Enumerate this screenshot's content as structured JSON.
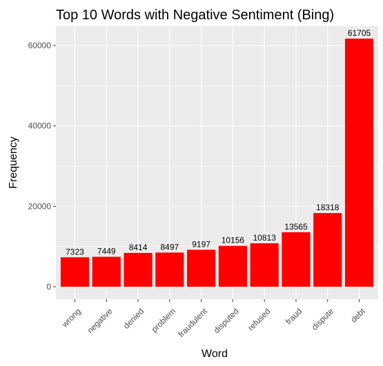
{
  "chart_data": {
    "type": "bar",
    "title": "Top 10 Words with Negative Sentiment (Bing)",
    "xlabel": "Word",
    "ylabel": "Frequency",
    "categories": [
      "wrong",
      "negative",
      "denied",
      "problem",
      "fraudulent",
      "disputed",
      "refused",
      "fraud",
      "dispute",
      "debt"
    ],
    "values": [
      7323,
      7449,
      8414,
      8497,
      9197,
      10156,
      10813,
      13565,
      18318,
      61705
    ],
    "y_ticks": [
      0,
      20000,
      40000,
      60000
    ],
    "ylim": [
      -3085,
      64790
    ],
    "grid": true,
    "bar_color": "#FF0000",
    "panel_background": "#EBEBEB",
    "x_tick_rotation": "45deg"
  }
}
